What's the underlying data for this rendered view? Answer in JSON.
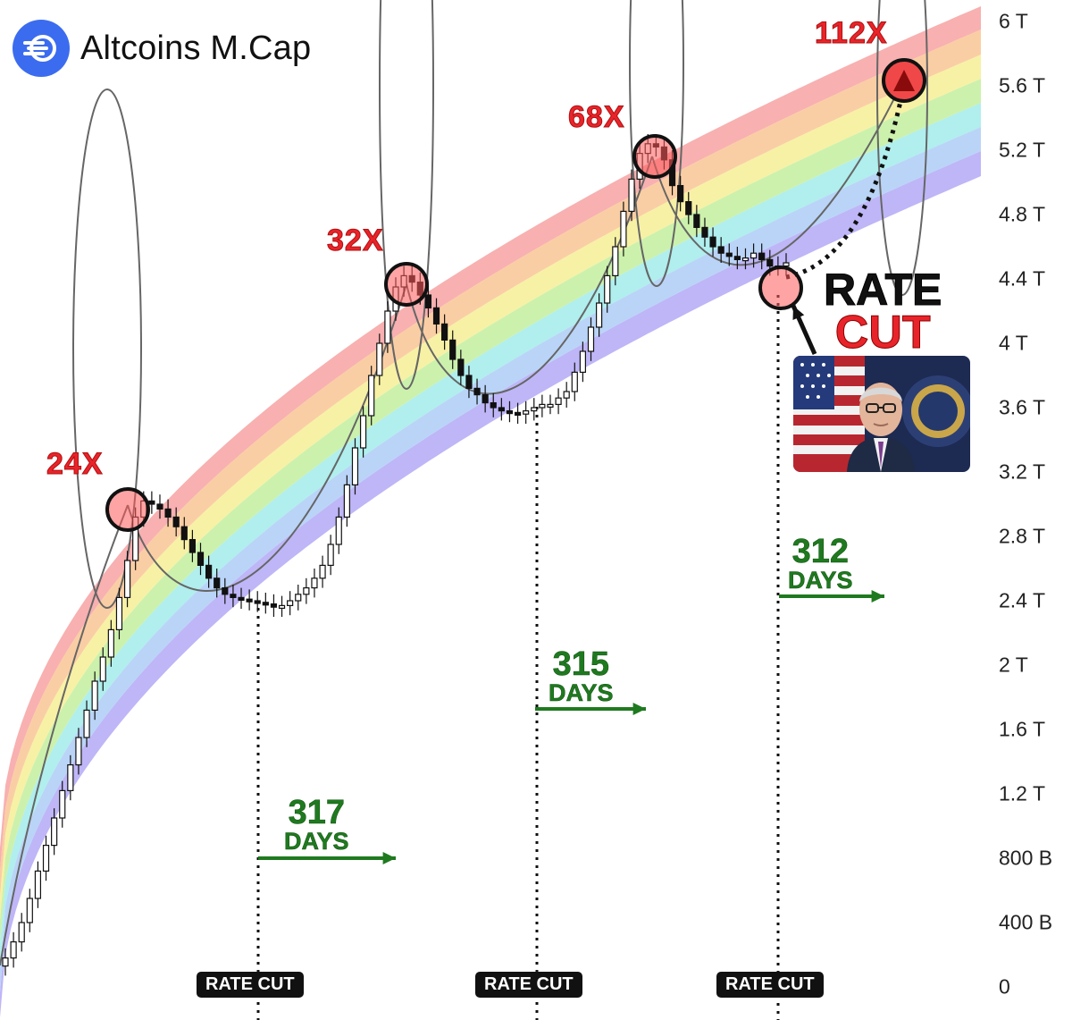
{
  "header": {
    "title": "Altcoins M.Cap",
    "logo_icon": "speed-lines-icon"
  },
  "y_axis": {
    "ticks": [
      "6 T",
      "5.6 T",
      "5.2 T",
      "4.8 T",
      "4.4 T",
      "4 T",
      "3.6 T",
      "3.2 T",
      "2.8 T",
      "2.4 T",
      "2 T",
      "1.6 T",
      "1.2 T",
      "800 B",
      "400 B",
      "0"
    ]
  },
  "annotations": {
    "multipliers": [
      "24X",
      "32X",
      "68X",
      "112X"
    ],
    "days": [
      {
        "number": "317",
        "label": "DAYS"
      },
      {
        "number": "315",
        "label": "DAYS"
      },
      {
        "number": "312",
        "label": "DAYS"
      }
    ],
    "rate_cut_badges": [
      "RATE CUT",
      "RATE CUT",
      "RATE CUT"
    ],
    "callout": {
      "line1": "RATE",
      "line2": "CUT"
    }
  },
  "colors": {
    "brand_blue": "#3b6cf0",
    "multiplier_red": "#e8242a",
    "days_green": "#1f7a1f",
    "bands": [
      "#f7a7a7",
      "#f9c99a",
      "#f6ef9c",
      "#c6f0a4",
      "#a9ecec",
      "#b2cff6",
      "#b7aef6"
    ]
  },
  "chart_data": {
    "type": "candlestick",
    "y_range": [
      0,
      6
    ],
    "y_unit": "T",
    "rainbow_bands": 7,
    "cycle_peaks_multiplier": [
      "24X",
      "32X",
      "68X",
      "112X"
    ],
    "days_between_rate_cut_and_peak": [
      317,
      315,
      312
    ],
    "close_values": [
      0.18,
      0.28,
      0.4,
      0.55,
      0.72,
      0.88,
      1.05,
      1.22,
      1.38,
      1.55,
      1.72,
      1.9,
      2.05,
      2.22,
      2.42,
      2.65,
      2.92,
      3.02,
      3.0,
      2.97,
      2.92,
      2.86,
      2.78,
      2.7,
      2.62,
      2.54,
      2.48,
      2.44,
      2.42,
      2.41,
      2.4,
      2.39,
      2.38,
      2.36,
      2.37,
      2.4,
      2.44,
      2.48,
      2.54,
      2.62,
      2.75,
      2.92,
      3.12,
      3.35,
      3.55,
      3.8,
      4.0,
      4.2,
      4.35,
      4.42,
      4.38,
      4.3,
      4.22,
      4.12,
      4.02,
      3.9,
      3.8,
      3.72,
      3.68,
      3.63,
      3.6,
      3.58,
      3.57,
      3.56,
      3.58,
      3.6,
      3.62,
      3.62,
      3.66,
      3.7,
      3.82,
      3.95,
      4.1,
      4.25,
      4.42,
      4.6,
      4.82,
      5.02,
      5.18,
      5.24,
      5.22,
      5.14,
      4.98,
      4.88,
      4.8,
      4.72,
      4.66,
      4.6,
      4.56,
      4.54,
      4.52,
      4.53,
      4.56,
      4.52,
      4.48,
      4.48,
      4.5
    ]
  }
}
